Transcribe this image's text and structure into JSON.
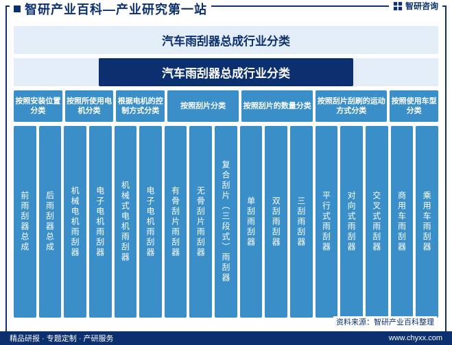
{
  "header": {
    "title": "智研产业百科—产业研究第一站",
    "brand": "智研咨询"
  },
  "title_outer": "汽车雨刮器总成行业分类",
  "title_inner": "汽车雨刮器总成行业分类",
  "colors": {
    "primary": "#0b2f6f",
    "box": "#3a8fc8",
    "light": "#e3edf7",
    "text_on_box": "#ffffff"
  },
  "categories": [
    {
      "label": "按照安装位置分类",
      "span": 2
    },
    {
      "label": "按照所使用电机分类",
      "span": 2
    },
    {
      "label": "根据电机的控制方式分类",
      "span": 2
    },
    {
      "label": "按照刮片分类",
      "span": 3
    },
    {
      "label": "按照刮片的数量分类",
      "span": 3
    },
    {
      "label": "按照刮片刮刷的运动方式分类",
      "span": 3
    },
    {
      "label": "按照使用车型分类",
      "span": 2
    }
  ],
  "items": [
    "前雨刮器总成",
    "后雨刮器总成",
    "机械电机雨刮器",
    "电子电机雨刮器",
    "机械式电机雨刮器",
    "电子电机雨刮器",
    "有骨刮片雨刮器",
    "无骨刮片雨刮器",
    "复合刮片（三段式）雨刮器",
    "单刮雨刮器",
    "双刮雨刮器",
    "三刮雨刮器",
    "平行式雨刮器",
    "对向式雨刮器",
    "交叉式雨刮器",
    "商用车雨刮器",
    "乘用车雨刮器"
  ],
  "source": "资料来源：智研产业百科整理",
  "footer_left": "精品研报 · 专题定制 · 产研服务",
  "footer_right": "www.chyxx.com"
}
